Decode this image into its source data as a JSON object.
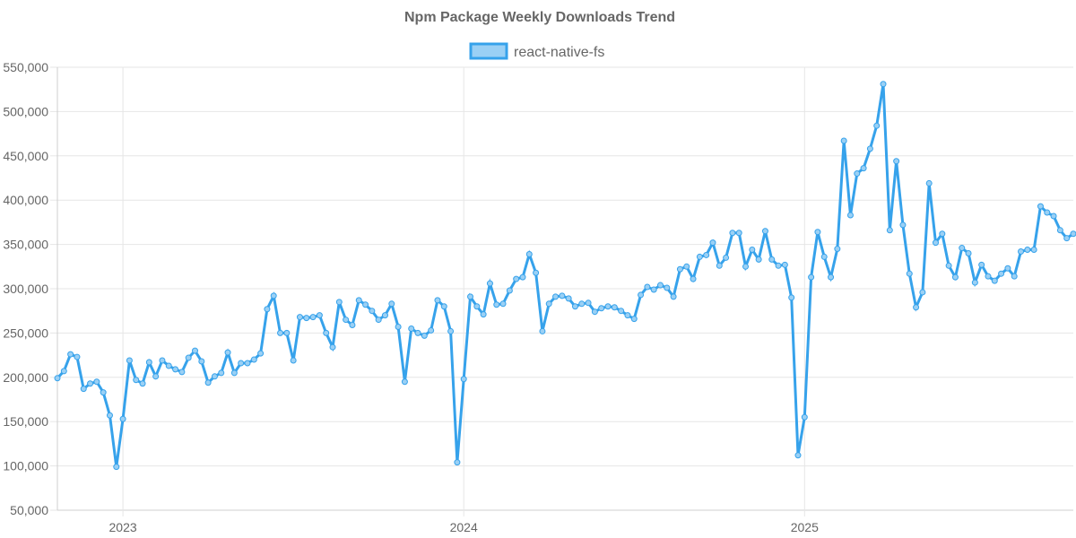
{
  "chart_data": {
    "type": "line",
    "title": "Npm Package Weekly Downloads Trend",
    "xlabel": "",
    "ylabel": "",
    "legend_position": "top",
    "ylim": [
      50000,
      550000
    ],
    "y_ticks": [
      50000,
      100000,
      150000,
      200000,
      250000,
      300000,
      350000,
      400000,
      450000,
      500000,
      550000
    ],
    "y_tick_labels": [
      "50,000",
      "100,000",
      "150,000",
      "200,000",
      "250,000",
      "300,000",
      "350,000",
      "400,000",
      "450,000",
      "500,000",
      "550,000"
    ],
    "x_start_week": 0,
    "x_end_week": 155,
    "x_tick_positions": [
      10,
      62,
      114
    ],
    "x_tick_labels": [
      "2023",
      "2024",
      "2025"
    ],
    "series": [
      {
        "name": "react-native-fs",
        "color": "#36a2eb",
        "fill": "#9ad0f5",
        "values": [
          199000,
          207000,
          226000,
          223000,
          187000,
          193000,
          195000,
          183000,
          157000,
          99000,
          153000,
          219000,
          197000,
          193000,
          217000,
          201000,
          219000,
          213000,
          209000,
          206000,
          222000,
          230000,
          218000,
          194000,
          201000,
          205000,
          228000,
          205000,
          216000,
          216000,
          220000,
          227000,
          277000,
          292000,
          250000,
          250000,
          219000,
          268000,
          267000,
          268000,
          270000,
          250000,
          234000,
          285000,
          265000,
          259000,
          287000,
          282000,
          275000,
          265000,
          270000,
          283000,
          257000,
          195000,
          255000,
          250000,
          247000,
          253000,
          287000,
          280000,
          252000,
          104000,
          198000,
          291000,
          280000,
          271000,
          306000,
          282000,
          283000,
          298000,
          311000,
          313000,
          339000,
          318000,
          252000,
          283000,
          291000,
          292000,
          289000,
          280000,
          283000,
          284000,
          274000,
          278000,
          280000,
          279000,
          275000,
          270000,
          266000,
          293000,
          302000,
          299000,
          304000,
          301000,
          291000,
          322000,
          325000,
          311000,
          336000,
          338000,
          352000,
          326000,
          335000,
          363000,
          363000,
          325000,
          344000,
          333000,
          365000,
          333000,
          326000,
          327000,
          290000,
          112000,
          155000,
          313000,
          364000,
          336000,
          313000,
          345000,
          467000,
          383000,
          430000,
          436000,
          458000,
          484000,
          531000,
          366000,
          444000,
          372000,
          317000,
          279000,
          296000,
          419000,
          352000,
          362000,
          326000,
          313000,
          346000,
          340000,
          307000,
          327000,
          314000,
          309000,
          317000,
          323000,
          314000,
          342000,
          344000,
          344000,
          393000,
          386000,
          382000,
          366000,
          357000,
          362000
        ]
      }
    ]
  }
}
